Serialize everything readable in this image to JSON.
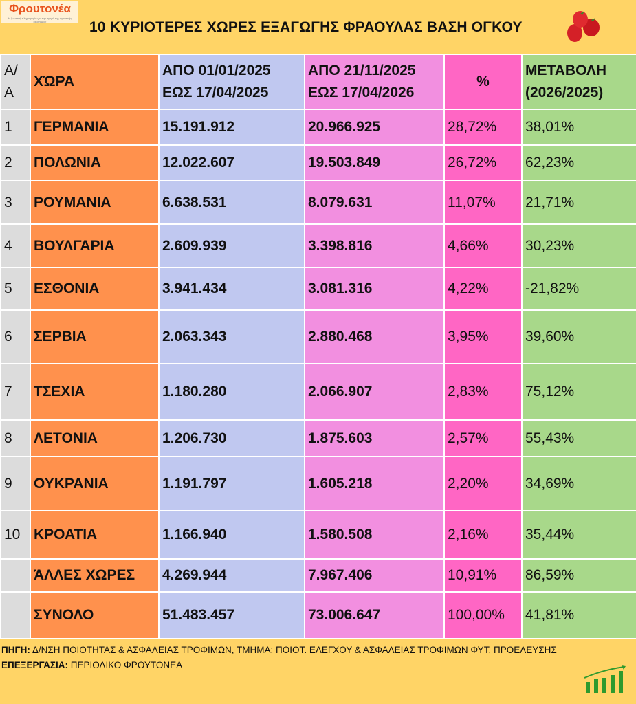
{
  "logo": {
    "name": "Φρουτονέα",
    "tagline": "Η ζωντανή πληροφορία για την αγορά της αγροτικής οικονομίας"
  },
  "title": "10 ΚΥΡΙΟΤΕΡΕΣ ΧΩΡΕΣ ΕΞΑΓΩΓΗΣ ΦΡΑΟΥΛΑΣ ΒΑΣΗ ΟΓΚΟΥ",
  "headers": {
    "aa": [
      "Α/",
      "Α"
    ],
    "country": "ΧΏΡΑ",
    "p1": [
      "ΑΠΟ 01/01/2025",
      "ΕΩΣ  17/04/2025"
    ],
    "p2": [
      "ΑΠΟ 21/11/2025",
      "ΕΩΣ  17/04/2026"
    ],
    "pct": "%",
    "change": [
      "ΜΕΤΑΒΟΛΗ",
      "(2026/2025)"
    ]
  },
  "rows": [
    {
      "aa": "1",
      "country": "ΓΕΡΜΑΝΙΑ",
      "p1": "15.191.912",
      "p2": "20.966.925",
      "pct": "28,72%",
      "change": "38,01%"
    },
    {
      "aa": "2",
      "country": "ΠΟΛΩΝΙΑ",
      "p1": "12.022.607",
      "p2": "19.503.849",
      "pct": "26,72%",
      "change": "62,23%"
    },
    {
      "aa": "3",
      "country": "ΡΟΥΜΑΝΙΑ",
      "p1": "6.638.531",
      "p2": "8.079.631",
      "pct": "11,07%",
      "change": "21,71%"
    },
    {
      "aa": "4",
      "country": "ΒΟΥΛΓΑΡΙΑ",
      "p1": "2.609.939",
      "p2": "3.398.816",
      "pct": "4,66%",
      "change": "30,23%"
    },
    {
      "aa": "5",
      "country": "ΕΣΘΟΝΙΑ",
      "p1": "3.941.434",
      "p2": "3.081.316",
      "pct": "4,22%",
      "change": "-21,82%"
    },
    {
      "aa": "6",
      "country": "ΣΕΡΒΙΑ",
      "p1": "2.063.343",
      "p2": "2.880.468",
      "pct": "3,95%",
      "change": "39,60%"
    },
    {
      "aa": "7",
      "country": "ΤΣΕΧΙΑ",
      "p1": "1.180.280",
      "p2": "2.066.907",
      "pct": "2,83%",
      "change": "75,12%"
    },
    {
      "aa": "8",
      "country": "ΛΕΤΟΝΙΑ",
      "p1": "1.206.730",
      "p2": "1.875.603",
      "pct": "2,57%",
      "change": "55,43%"
    },
    {
      "aa": "9",
      "country": "ΟΥΚΡΑΝΙΑ",
      "p1": "1.191.797",
      "p2": "1.605.218",
      "pct": "2,20%",
      "change": "34,69%"
    },
    {
      "aa": "10",
      "country": "ΚΡΟΑΤΙΑ",
      "p1": "1.166.940",
      "p2": "1.580.508",
      "pct": "2,16%",
      "change": "35,44%"
    },
    {
      "aa": "",
      "country": "ΆΛΛΕΣ ΧΩΡΕΣ",
      "p1": "4.269.944",
      "p2": "7.967.406",
      "pct": "10,91%",
      "change": "86,59%"
    },
    {
      "aa": "",
      "country": "ΣΥΝΟΛΟ",
      "p1": "51.483.457",
      "p2": "73.006.647",
      "pct": "100,00%",
      "change": "41,81%"
    }
  ],
  "footer": {
    "source_label": "ΠΗΓΗ:",
    "source": " Δ/ΝΣΗ ΠΟΙΟΤΗΤΑΣ & ΑΣΦΑΛΕΙΑΣ ΤΡΟΦΙΜΩΝ, ΤΜΗΜΑ: ΠΟΙΟΤ. ΕΛΕΓΧΟΥ & ΑΣΦΑΛΕΙΑΣ ΤΡΟΦΙΜΩΝ ΦΥΤ. ΠΡΟΕΛΕΥΣΗΣ",
    "processing_label": "ΕΠΕΞΕΡΓΑΣΙΑ:",
    "processing": " ΠΕΡΙΟΔΙΚΟ ΦΡΟΥΤΟΝΕΑ"
  }
}
